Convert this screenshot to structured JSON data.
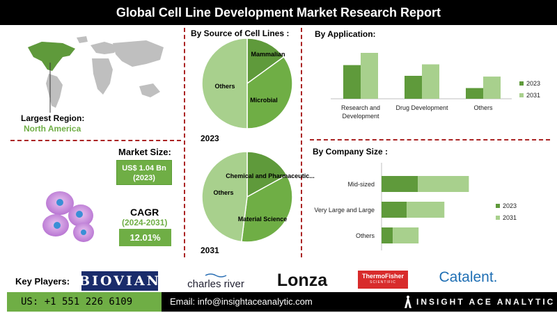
{
  "header": {
    "title": "Global Cell Line Development Market Research Report"
  },
  "region": {
    "label": "Largest Region:",
    "value": "North America"
  },
  "market_size": {
    "label": "Market Size:",
    "value_line1": "US$ 1.04 Bn",
    "value_line2": "(2023)"
  },
  "cagr": {
    "label": "CAGR",
    "period": "(2024-2031)",
    "value": "12.01%"
  },
  "source_section": {
    "title": "By Source of Cell Lines :"
  },
  "application_section": {
    "title": "By Application:"
  },
  "company_section": {
    "title": "By Company Size :"
  },
  "key_players": {
    "label": "Key Players:",
    "biovian": "BIOVIAN",
    "charles_river": "charles river",
    "lonza": "Lonza",
    "thermo_line1": "ThermoFisher",
    "thermo_line2": "SCIENTIFIC",
    "catalent": "Catalent."
  },
  "footer": {
    "phone": "US: +1 551 226 6109",
    "email": "Email: info@insightaceanalytic.com",
    "brand": "INSIGHT ACE ANALYTIC"
  },
  "colors": {
    "dark_green": "#5f9a3b",
    "light_green": "#a8d08d",
    "accent_red": "#a22222",
    "title_bg": "#000000"
  },
  "icons": {
    "map": "world-map-icon",
    "cells": "cell-cluster-icon",
    "brand": "insightace-logo-icon"
  },
  "chart_data": [
    {
      "type": "pie",
      "title": "2023",
      "labels": [
        "Mammalian",
        "Microbial",
        "Others"
      ],
      "values": [
        15,
        35,
        50
      ],
      "colors": [
        "#5f9a3b",
        "#6fae45",
        "#a8d08d"
      ]
    },
    {
      "type": "pie",
      "title": "2031",
      "labels": [
        "Chemical and Pharmaceutic...",
        "Material Science",
        "Others"
      ],
      "values": [
        17,
        35,
        48
      ],
      "colors": [
        "#5f9a3b",
        "#6fae45",
        "#a8d08d"
      ]
    },
    {
      "type": "bar",
      "orientation": "vertical",
      "categories": [
        "Research and Development",
        "Drug Development",
        "Others"
      ],
      "series": [
        {
          "name": "2023",
          "values": [
            4.4,
            3.0,
            1.4
          ],
          "color": "#5f9a3b"
        },
        {
          "name": "2031",
          "values": [
            6.0,
            4.5,
            2.9
          ],
          "color": "#a8d08d"
        }
      ],
      "ylim": [
        0,
        7
      ],
      "legend": "right"
    },
    {
      "type": "bar",
      "orientation": "horizontal",
      "stacked": true,
      "categories": [
        "Mid-sized",
        "Very Large and Large",
        "Others"
      ],
      "series": [
        {
          "name": "2023",
          "values": [
            55,
            38,
            17
          ],
          "color": "#5f9a3b"
        },
        {
          "name": "2031",
          "values": [
            77,
            57,
            39
          ],
          "color": "#a8d08d"
        }
      ],
      "xlim": [
        0,
        140
      ],
      "legend": "right"
    }
  ]
}
